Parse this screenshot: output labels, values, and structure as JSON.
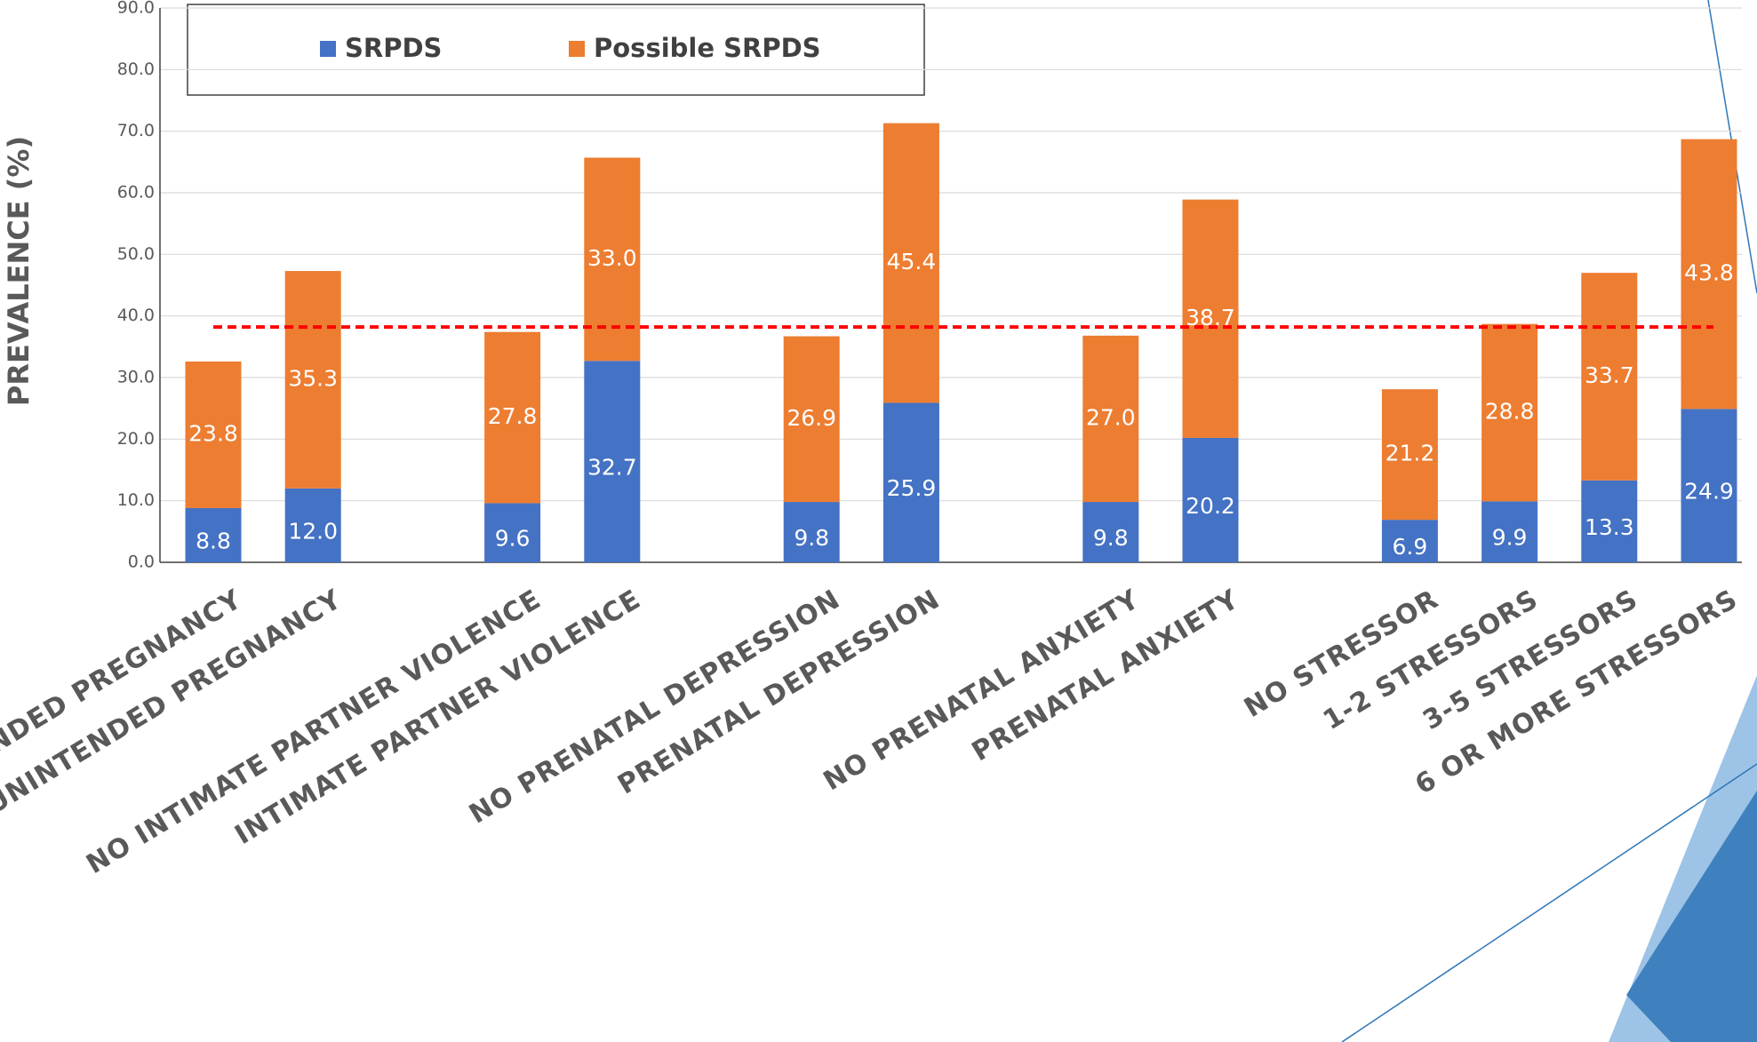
{
  "chart_data": {
    "type": "stacked_bar",
    "y_label": "PREVALENCE (%)",
    "categories": [
      "INTENDED PREGNANCY",
      "UNINTENDED PREGNANCY",
      null,
      "NO INTIMATE PARTNER VIOLENCE",
      "INTIMATE PARTNER VIOLENCE",
      null,
      "NO PRENATAL DEPRESSION",
      "PRENATAL DEPRESSION",
      null,
      "NO PRENATAL ANXIETY",
      "PRENATAL ANXIETY",
      null,
      "NO STRESSOR",
      "1-2 STRESSORS",
      "3-5 STRESSORS",
      "6 OR MORE STRESSORS"
    ],
    "series": [
      {
        "name": "SRPDS",
        "color": "#4472c4",
        "values": [
          8.8,
          12.0,
          null,
          9.6,
          32.7,
          null,
          9.8,
          25.9,
          null,
          9.8,
          20.2,
          null,
          6.9,
          9.9,
          13.3,
          24.9
        ],
        "value_labels": [
          "8.8",
          "12.0",
          null,
          "9.6",
          "32.7",
          null,
          "9.8",
          "25.9",
          null,
          "9.8",
          "20.2",
          null,
          "6.9",
          "9.9",
          "13.3",
          "24.9"
        ]
      },
      {
        "name": "Possible SRPDS",
        "color": "#ed7d31",
        "values": [
          23.8,
          35.3,
          null,
          27.8,
          33.0,
          null,
          26.9,
          45.4,
          null,
          27.0,
          38.7,
          null,
          21.2,
          28.8,
          33.7,
          43.8
        ],
        "value_labels": [
          "23.8",
          "35.3",
          null,
          "27.8",
          "33.0",
          null,
          "26.9",
          "45.4",
          null,
          "27.0",
          "38.7",
          null,
          "21.2",
          "28.8",
          "33.7",
          "43.8"
        ]
      }
    ],
    "ylim": [
      0,
      90
    ],
    "yticks": [
      {
        "value": 0,
        "label": "0.0"
      },
      {
        "value": 10,
        "label": "10.0"
      },
      {
        "value": 20,
        "label": "20.0"
      },
      {
        "value": 30,
        "label": "30.0"
      },
      {
        "value": 40,
        "label": "40.0"
      },
      {
        "value": 50,
        "label": "50.0"
      },
      {
        "value": 60,
        "label": "60.0"
      },
      {
        "value": 70,
        "label": "70.0"
      },
      {
        "value": 80,
        "label": "80.0"
      },
      {
        "value": 90,
        "label": "90.0"
      }
    ],
    "grid": true,
    "reference_line": {
      "value": 38.2,
      "color": "#ff0000"
    }
  }
}
